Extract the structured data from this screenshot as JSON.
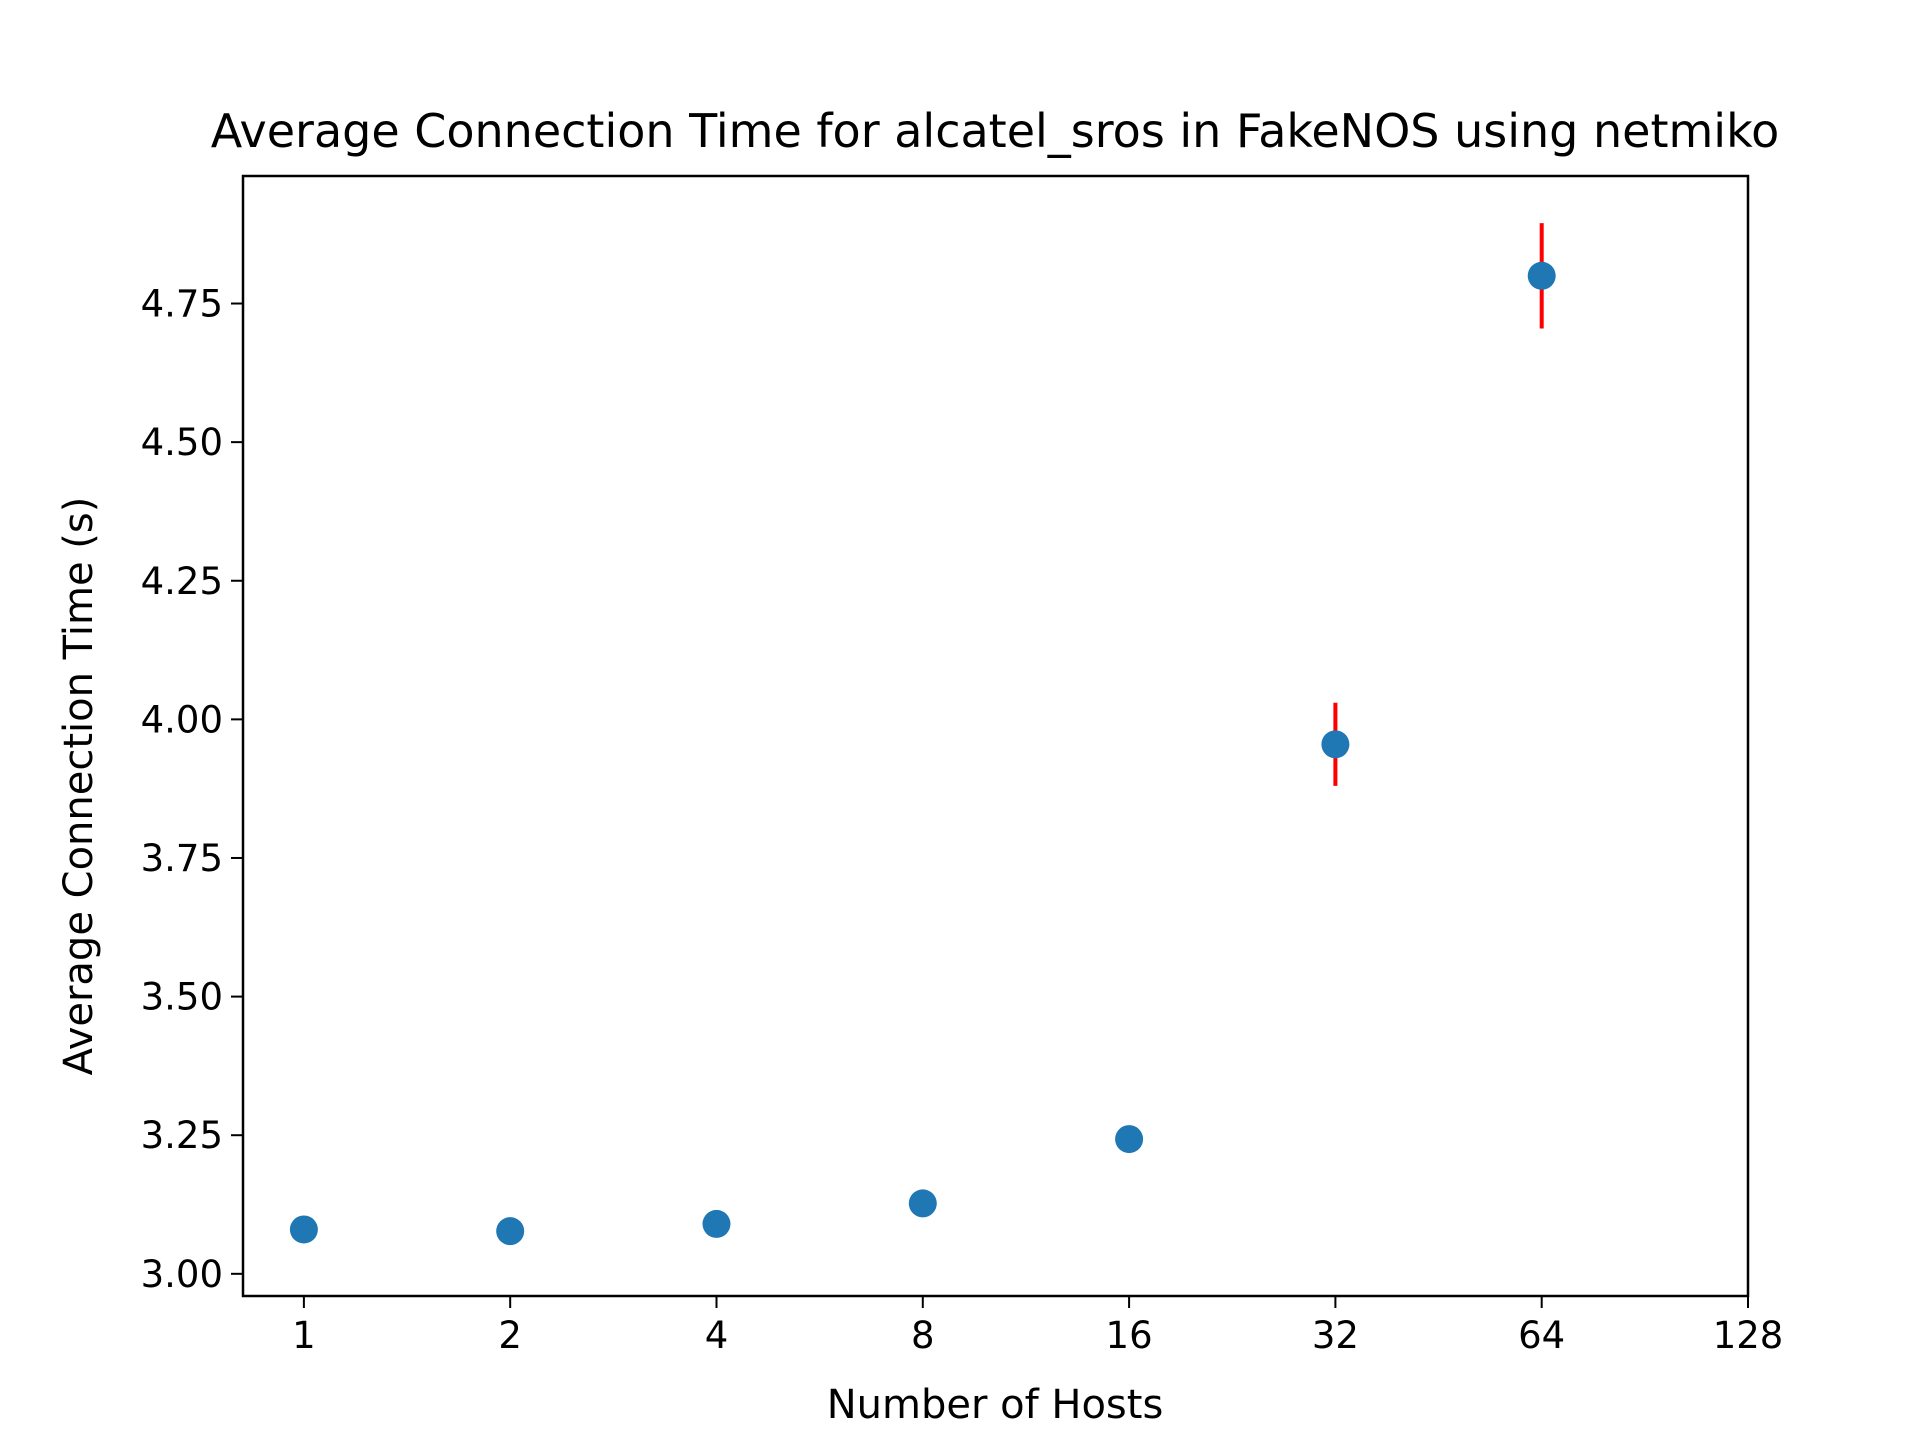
{
  "chart_data": {
    "type": "scatter",
    "title": "Average Connection Time for alcatel_sros in FakeNOS using netmiko",
    "xlabel": "Number of Hosts",
    "ylabel": "Average Connection Time (s)",
    "x_scale": "log2",
    "x_ticks": [
      "1",
      "2",
      "4",
      "8",
      "16",
      "32",
      "64",
      "128"
    ],
    "y_ticks": [
      "3.00",
      "3.25",
      "3.50",
      "3.75",
      "4.00",
      "4.25",
      "4.50",
      "4.75"
    ],
    "xlim": [
      0.815,
      128
    ],
    "ylim": [
      2.96,
      4.98
    ],
    "grid": false,
    "marker_color": "#1f77b4",
    "errorbar_color": "#ff0000",
    "points": [
      {
        "x": 1,
        "y": 3.08,
        "err": 0.005
      },
      {
        "x": 2,
        "y": 3.077,
        "err": 0.022
      },
      {
        "x": 4,
        "y": 3.09,
        "err": 0.005
      },
      {
        "x": 8,
        "y": 3.127,
        "err": 0.005
      },
      {
        "x": 16,
        "y": 3.243,
        "err": 0.02
      },
      {
        "x": 32,
        "y": 3.955,
        "err": 0.075
      },
      {
        "x": 64,
        "y": 4.8,
        "err": 0.095
      }
    ]
  }
}
